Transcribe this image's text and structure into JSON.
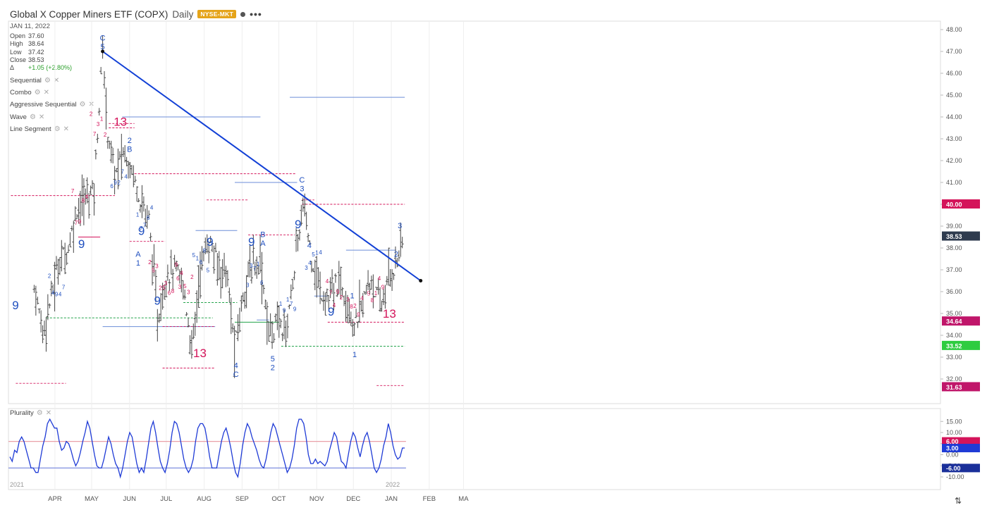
{
  "header": {
    "title": "Global X Copper Miners ETF (COPX)",
    "interval": "Daily",
    "exchange": "NYSE-MKT",
    "exchange_color": "#e5a41a",
    "date": "JAN 11, 2022",
    "ohlc": [
      {
        "label": "Open",
        "value": "37.60"
      },
      {
        "label": "High",
        "value": "38.64"
      },
      {
        "label": "Low",
        "value": "37.42"
      },
      {
        "label": "Close",
        "value": "38.53"
      },
      {
        "label": "Δ",
        "value": "+1.05 (+2.80%)"
      }
    ],
    "more_icon": "more-dots-icon"
  },
  "studies": [
    "Sequential",
    "Combo",
    "Aggressive Sequential",
    "Wave",
    "Line Segment"
  ],
  "study_icons": {
    "settings": "gear-icon",
    "remove": "close-icon"
  },
  "colors": {
    "up_label": "#1f4fbf",
    "down_label": "#d4145a",
    "trendline": "#1240d6",
    "bars": "#444444"
  },
  "chart_data": [
    {
      "type": "ohlc",
      "x_ticks": [
        "APR",
        "MAY",
        "JUN",
        "JUL",
        "AUG",
        "SEP",
        "OCT",
        "NOV",
        "DEC",
        "JAN",
        "FEB",
        "MA"
      ],
      "year_labels": [
        "2021",
        "2022"
      ],
      "y_ticks": [
        "48.00",
        "47.00",
        "46.00",
        "45.00",
        "44.00",
        "43.00",
        "42.00",
        "41.00",
        "40.00",
        "39.00",
        "38.00",
        "37.00",
        "36.00",
        "35.00",
        "34.00",
        "33.00",
        "32.00"
      ],
      "ylim": [
        31.2,
        48.5
      ],
      "close_path": [
        [
          "2021-03-15",
          36.2
        ],
        [
          "2021-03-22",
          34.2
        ],
        [
          "2021-03-29",
          35.8
        ],
        [
          "2021-04-05",
          37.5
        ],
        [
          "2021-04-12",
          38.0
        ],
        [
          "2021-04-19",
          39.8
        ],
        [
          "2021-04-26",
          40.3
        ],
        [
          "2021-05-03",
          40.8
        ],
        [
          "2021-05-10",
          47.0
        ],
        [
          "2021-05-14",
          43.4
        ],
        [
          "2021-05-20",
          41.3
        ],
        [
          "2021-05-27",
          42.4
        ],
        [
          "2021-06-03",
          41.7
        ],
        [
          "2021-06-10",
          40.2
        ],
        [
          "2021-06-17",
          39.3
        ],
        [
          "2021-06-24",
          34.6
        ],
        [
          "2021-07-01",
          36.8
        ],
        [
          "2021-07-08",
          37.0
        ],
        [
          "2021-07-15",
          36.3
        ],
        [
          "2021-07-22",
          33.3
        ],
        [
          "2021-07-29",
          37.2
        ],
        [
          "2021-08-05",
          38.3
        ],
        [
          "2021-08-12",
          37.2
        ],
        [
          "2021-08-19",
          37.0
        ],
        [
          "2021-08-26",
          33.3
        ],
        [
          "2021-09-02",
          36.0
        ],
        [
          "2021-09-09",
          37.2
        ],
        [
          "2021-09-16",
          37.5
        ],
        [
          "2021-09-23",
          34.0
        ],
        [
          "2021-09-30",
          34.6
        ],
        [
          "2021-10-07",
          34.2
        ],
        [
          "2021-10-14",
          37.2
        ],
        [
          "2021-10-21",
          40.0
        ],
        [
          "2021-10-28",
          37.6
        ],
        [
          "2021-11-04",
          36.0
        ],
        [
          "2021-11-11",
          35.6
        ],
        [
          "2021-11-18",
          36.4
        ],
        [
          "2021-11-25",
          36.0
        ],
        [
          "2021-12-02",
          34.3
        ],
        [
          "2021-12-09",
          35.6
        ],
        [
          "2021-12-16",
          36.6
        ],
        [
          "2021-12-23",
          35.2
        ],
        [
          "2021-12-30",
          36.6
        ],
        [
          "2022-01-05",
          37.3
        ],
        [
          "2022-01-11",
          38.53
        ]
      ],
      "trendline": {
        "start": [
          "2021-05-10",
          47.0
        ],
        "end": [
          "2022-01-25",
          36.5
        ]
      },
      "sequential_labels_up": [
        "9",
        "9",
        "9",
        "9",
        "9",
        "9",
        "9",
        "9"
      ],
      "sequential_labels_down": [
        "13",
        "13",
        "13",
        "13"
      ],
      "wave_labels": [
        "C",
        "5",
        "2",
        "B",
        "A",
        "1",
        "4",
        "C",
        "5",
        "2",
        "B",
        "A",
        "1",
        "C",
        "3",
        "4",
        "1",
        "2",
        "3"
      ],
      "price_labels": [
        {
          "value": "40.00",
          "color": "#d4145a"
        },
        {
          "value": "38.53",
          "color": "#2e3b4e"
        },
        {
          "value": "34.64",
          "color": "#c0166a"
        },
        {
          "value": "33.52",
          "color": "#2ecc40"
        },
        {
          "value": "31.63",
          "color": "#c0166a"
        }
      ]
    },
    {
      "type": "line",
      "title": "Plurality",
      "y_ticks": [
        "15.00",
        "10.00",
        "5.00",
        "0.00",
        "-5.00",
        "-10.00"
      ],
      "ylim": [
        -12,
        17
      ],
      "series": [
        {
          "values": [
            -1,
            -3,
            2,
            1,
            6,
            8,
            6,
            2,
            -2,
            -6,
            -6,
            -8,
            -8,
            -2,
            4,
            8,
            14,
            16,
            14,
            12,
            12,
            6,
            2,
            3,
            6,
            5,
            2,
            -2,
            -5,
            -3,
            1,
            6,
            10,
            15,
            12,
            6,
            0,
            -5,
            -6,
            -6,
            -2,
            3,
            8,
            5,
            0,
            -4,
            -6,
            -10,
            -6,
            0,
            6,
            10,
            8,
            2,
            -4,
            -8,
            -6,
            -8,
            -2,
            5,
            12,
            15,
            10,
            3,
            -3,
            -6,
            -8,
            -4,
            2,
            10,
            15,
            14,
            10,
            4,
            -2,
            -6,
            -8,
            -6,
            -2,
            6,
            12,
            14,
            14,
            12,
            6,
            -1,
            -6,
            -6,
            -6,
            0,
            6,
            10,
            12,
            8,
            3,
            -3,
            -8,
            -10,
            -4,
            4,
            10,
            14,
            12,
            8,
            5,
            2,
            -2,
            -5,
            -6,
            -2,
            4,
            10,
            14,
            12,
            8,
            4,
            0,
            -4,
            -8,
            -6,
            -2,
            4,
            12,
            16,
            16,
            14,
            8,
            0,
            -4,
            -4,
            -2,
            -4,
            -3,
            -4,
            -5,
            -3,
            2,
            6,
            10,
            8,
            2,
            -3,
            -4,
            -6,
            0,
            6,
            10,
            8,
            3,
            -1,
            4,
            8,
            10,
            6,
            0,
            -6,
            -8,
            -6,
            -2,
            4,
            8,
            14,
            10,
            4,
            0,
            -2,
            -1,
            3,
            3
          ]
        }
      ],
      "price_labels": [
        {
          "value": "6.00",
          "color": "#d4145a"
        },
        {
          "value": "3.00",
          "color": "#1f3bd6"
        },
        {
          "value": "-6.00",
          "color": "#1a2f9a"
        }
      ],
      "levels": [
        6,
        -6
      ]
    }
  ]
}
